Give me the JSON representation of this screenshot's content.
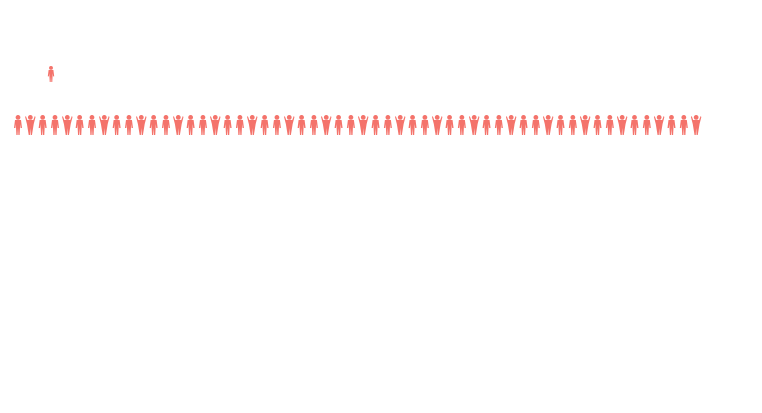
{
  "chart_data": {
    "type": "pictograph",
    "categories": [
      null,
      null
    ],
    "values": [
      1,
      56
    ],
    "color": "#f4736b"
  }
}
